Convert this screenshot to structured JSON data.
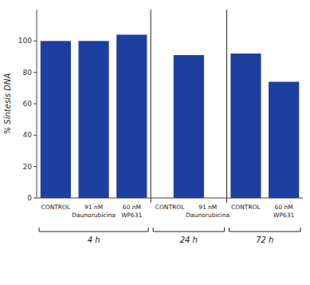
{
  "chart_data": {
    "type": "bar",
    "categories": [
      null,
      null,
      null,
      null,
      null,
      null
    ],
    "values": [
      100,
      100,
      104,
      91,
      92,
      74
    ],
    "color": "#1C3FA0",
    "ylabel": "% Síntesis DNA",
    "ylim": [
      0,
      120
    ],
    "yticks": [
      0,
      20,
      40,
      60,
      80,
      100
    ],
    "grid": false,
    "annotations": [
      "CONTROL",
      "91 nM\nDaunorubicina",
      "60 nM\nWP631",
      "CONTROL",
      "91 nM\nDaunorubicina",
      "CONTROL",
      "60 nM\nWP631",
      "4 h",
      "24 h",
      "72 h"
    ]
  }
}
